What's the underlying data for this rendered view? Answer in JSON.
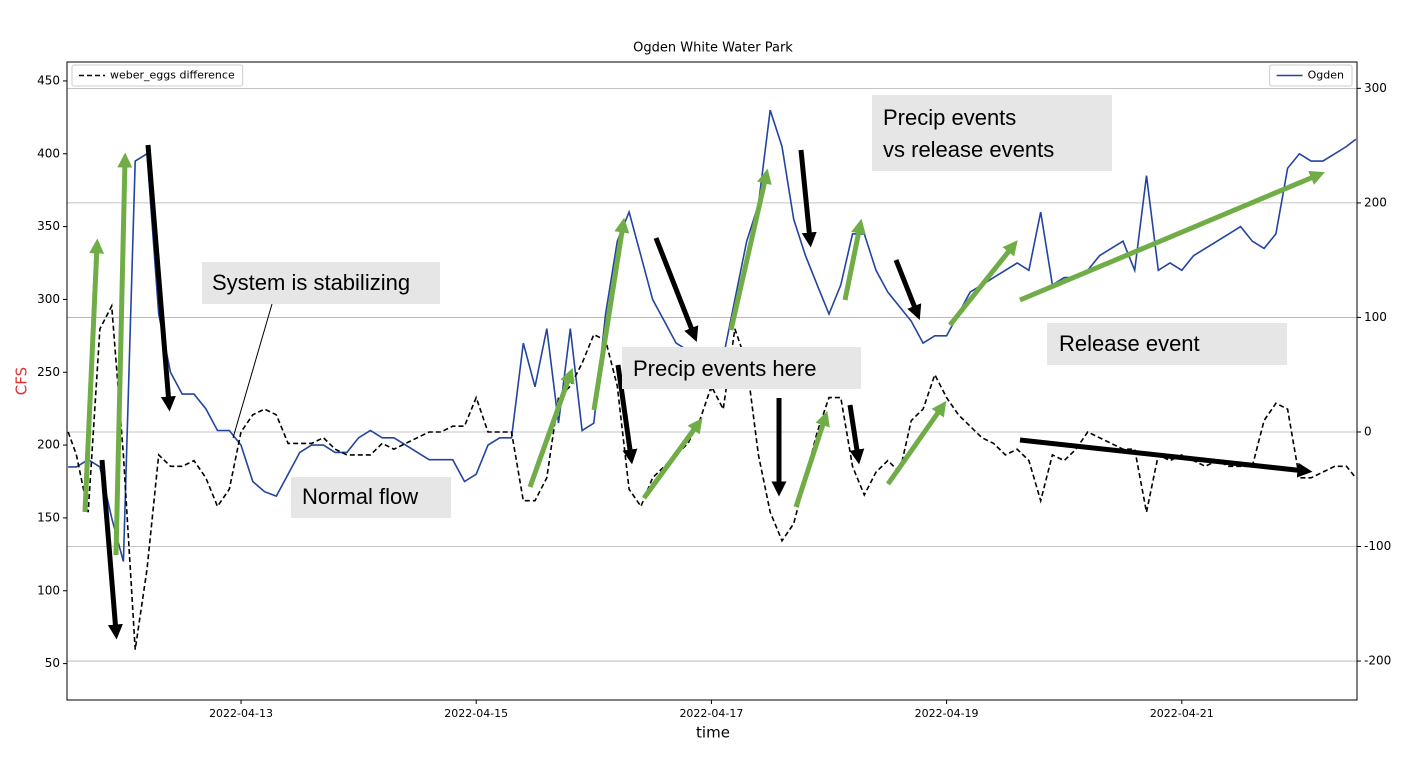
{
  "chart_data": {
    "type": "line",
    "title": "Ogden White Water Park",
    "xlabel": "time",
    "ylabel": "CFS",
    "x": [
      11.53,
      11.6,
      11.7,
      11.8,
      11.9,
      12.0,
      12.1,
      12.2,
      12.3,
      12.4,
      12.5,
      12.6,
      12.7,
      12.8,
      12.9,
      13.0,
      13.1,
      13.2,
      13.3,
      13.4,
      13.5,
      13.6,
      13.7,
      13.8,
      13.9,
      14.0,
      14.1,
      14.2,
      14.3,
      14.4,
      14.5,
      14.6,
      14.7,
      14.8,
      14.9,
      15.0,
      15.1,
      15.2,
      15.3,
      15.4,
      15.5,
      15.6,
      15.7,
      15.8,
      15.9,
      16.0,
      16.1,
      16.2,
      16.3,
      16.4,
      16.5,
      16.6,
      16.7,
      16.8,
      16.9,
      17.0,
      17.1,
      17.2,
      17.3,
      17.4,
      17.5,
      17.6,
      17.7,
      17.8,
      17.9,
      18.0,
      18.1,
      18.2,
      18.3,
      18.4,
      18.5,
      18.6,
      18.7,
      18.8,
      18.9,
      19.0,
      19.1,
      19.2,
      19.3,
      19.4,
      19.5,
      19.6,
      19.7,
      19.8,
      19.9,
      20.0,
      20.1,
      20.2,
      20.3,
      20.4,
      20.5,
      20.6,
      20.7,
      20.8,
      20.9,
      21.0,
      21.1,
      21.2,
      21.3,
      21.4,
      21.5,
      21.6,
      21.7,
      21.8,
      21.9,
      22.0,
      22.1,
      22.2,
      22.3,
      22.4,
      22.48
    ],
    "series": [
      {
        "name": "Ogden",
        "color": "#2344a0",
        "dash": false,
        "legend": "upper right",
        "values": [
          185,
          185,
          190,
          185,
          150,
          120,
          395,
          400,
          290,
          250,
          235,
          235,
          225,
          210,
          210,
          200,
          175,
          168,
          165,
          180,
          195,
          200,
          200,
          195,
          195,
          205,
          210,
          205,
          205,
          200,
          195,
          190,
          190,
          190,
          175,
          180,
          200,
          205,
          205,
          270,
          240,
          280,
          215,
          280,
          210,
          215,
          290,
          340,
          360,
          330,
          300,
          285,
          270,
          265,
          250,
          238,
          260,
          300,
          340,
          365,
          430,
          405,
          355,
          330,
          310,
          290,
          310,
          345,
          345,
          320,
          305,
          295,
          285,
          270,
          275,
          275,
          290,
          305,
          310,
          315,
          320,
          325,
          320,
          360,
          310,
          315,
          315,
          320,
          330,
          335,
          340,
          320,
          385,
          320,
          325,
          320,
          330,
          335,
          340,
          345,
          350,
          340,
          335,
          345,
          390,
          400,
          395,
          395,
          400,
          405,
          410
        ]
      },
      {
        "name": "weber_eggs difference",
        "color": "#000000",
        "dash": true,
        "axis": "y2",
        "legend": "upper left",
        "values": [
          0,
          -20,
          -70,
          90,
          110,
          -20,
          -190,
          -120,
          -20,
          -30,
          -30,
          -25,
          -40,
          -65,
          -50,
          0,
          15,
          20,
          15,
          -10,
          -10,
          -10,
          -5,
          -15,
          -20,
          -20,
          -20,
          -10,
          -15,
          -10,
          -5,
          0,
          0,
          5,
          5,
          30,
          0,
          0,
          0,
          -60,
          -60,
          -40,
          30,
          40,
          60,
          85,
          80,
          40,
          -50,
          -65,
          -40,
          -30,
          -20,
          -10,
          10,
          40,
          20,
          90,
          60,
          -20,
          -70,
          -95,
          -80,
          -40,
          0,
          30,
          30,
          -30,
          -55,
          -35,
          -25,
          -35,
          10,
          20,
          50,
          30,
          15,
          5,
          -5,
          -10,
          -20,
          -15,
          -25,
          -60,
          -20,
          -25,
          -15,
          0,
          -5,
          -10,
          -15,
          -15,
          -70,
          -20,
          -25,
          -20,
          -25,
          -30,
          -25,
          -30,
          -30,
          -30,
          10,
          25,
          20,
          -40,
          -40,
          -35,
          -30,
          -30,
          -40
        ]
      }
    ],
    "xlim": [
      11.52,
      22.49
    ],
    "xticks": [
      {
        "value": 13,
        "label": "2022-04-13"
      },
      {
        "value": 15,
        "label": "2022-04-15"
      },
      {
        "value": 17,
        "label": "2022-04-17"
      },
      {
        "value": 19,
        "label": "2022-04-19"
      },
      {
        "value": 21,
        "label": "2022-04-21"
      }
    ],
    "ylim": [
      25,
      463
    ],
    "yticks": [
      50,
      100,
      150,
      200,
      250,
      300,
      350,
      400,
      450
    ],
    "y2lim": [
      -234,
      323
    ],
    "y2ticks": [
      -200,
      -100,
      0,
      100,
      200,
      300
    ],
    "grid": "y2",
    "ylabel_color": "#e03030",
    "annotations": [
      "System is stabilizing",
      "Normal flow",
      "Precip events here",
      [
        "Precip events",
        "vs release events"
      ],
      "Release event"
    ]
  }
}
